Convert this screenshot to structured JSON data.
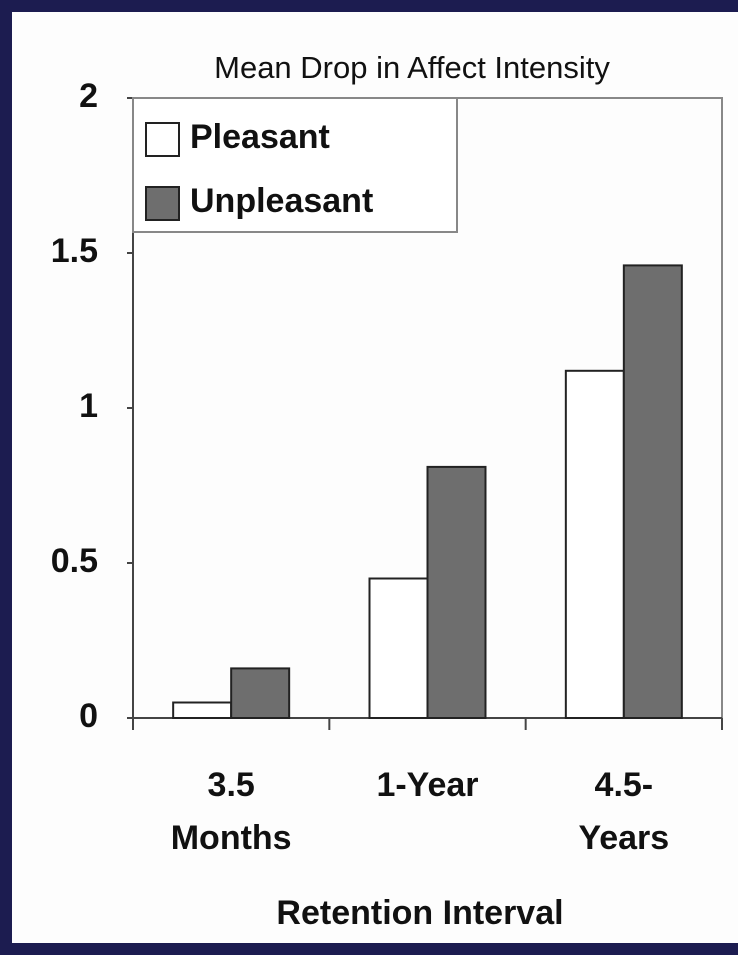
{
  "chart_data": {
    "type": "bar",
    "title": "Mean Drop in Affect Intensity",
    "x_label": "Retention Interval",
    "categories": [
      "3.5 Months",
      "1-Year",
      "4.5- Years"
    ],
    "series": [
      {
        "name": "Pleasant",
        "color": "#ffffff",
        "values": [
          0.05,
          0.45,
          1.12
        ]
      },
      {
        "name": "Unpleasant",
        "color": "#6e6e6e",
        "values": [
          0.16,
          0.81,
          1.46
        ]
      }
    ],
    "ylim": [
      0,
      2
    ],
    "yticks": [
      0,
      0.5,
      1,
      1.5,
      2
    ],
    "legend": "upper-left"
  }
}
